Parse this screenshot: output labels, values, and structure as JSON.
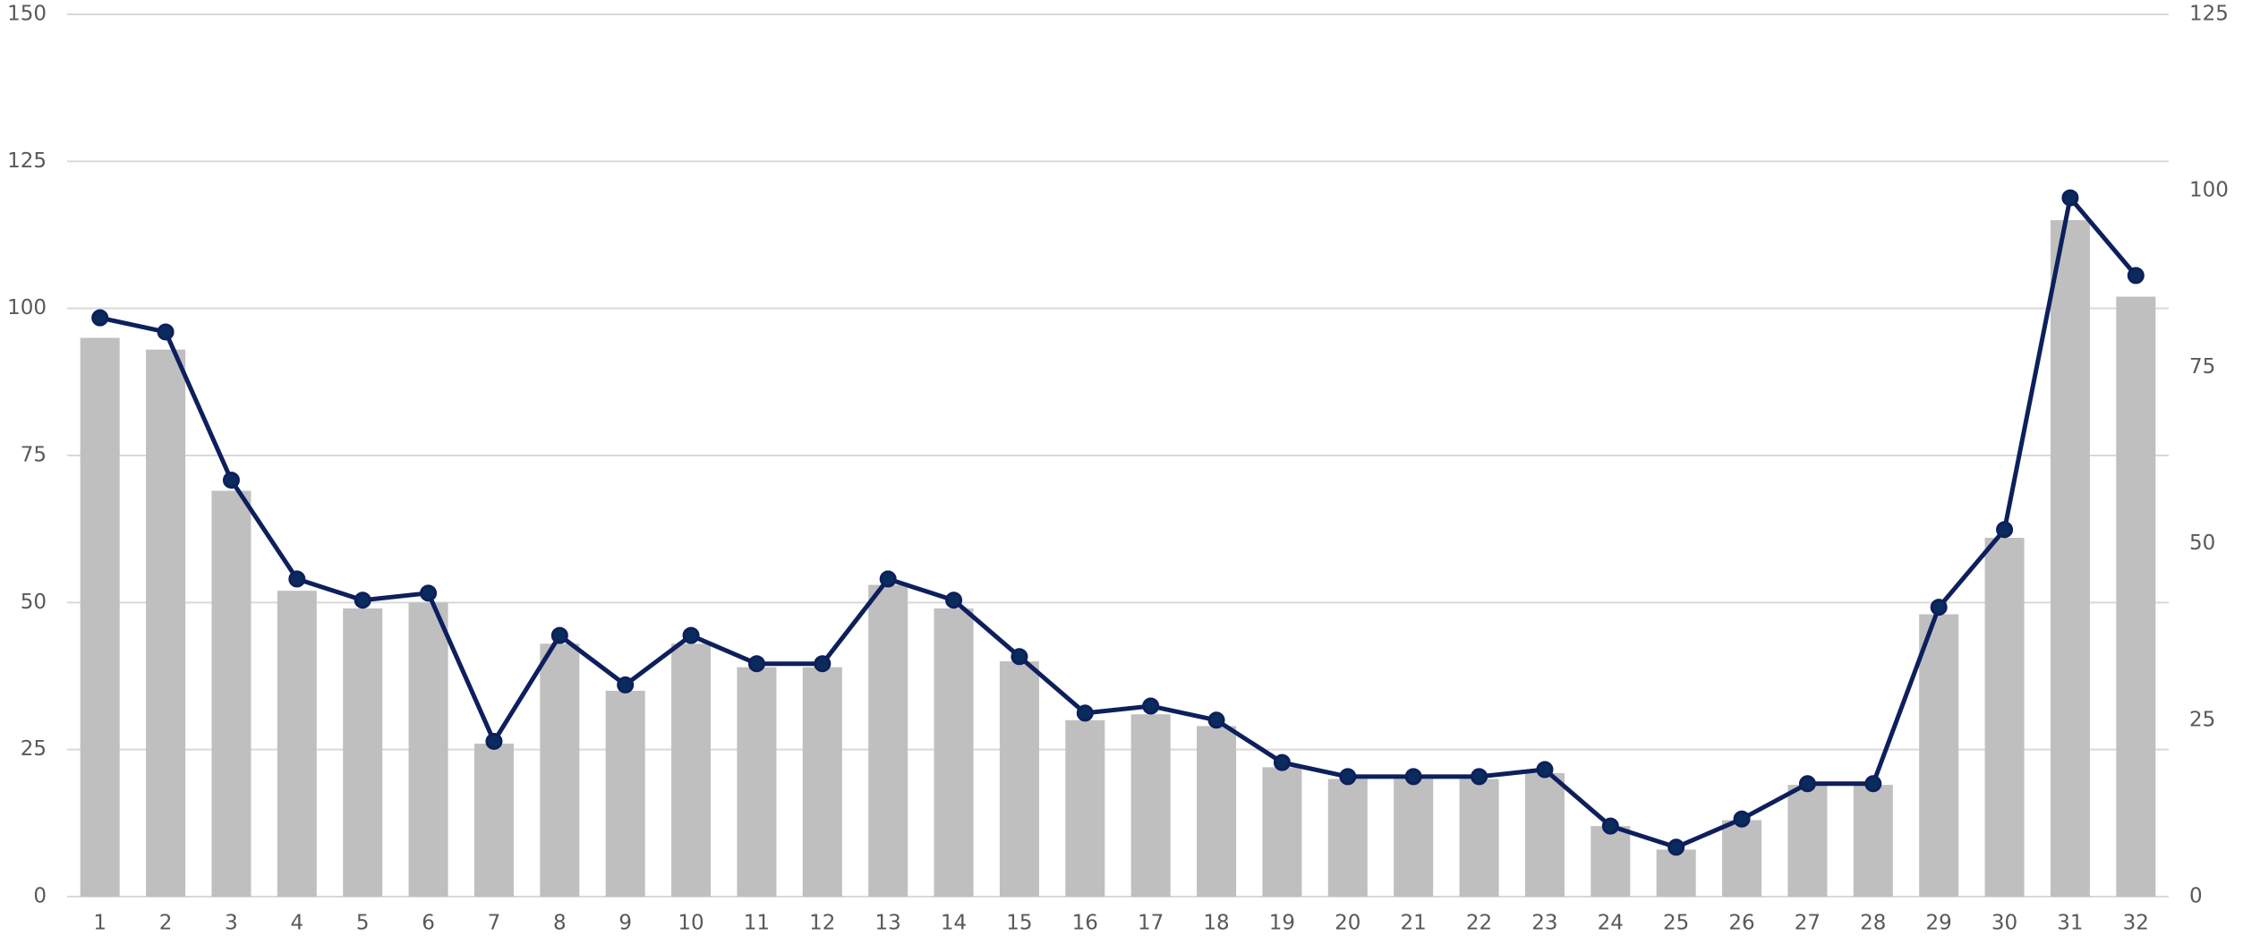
{
  "chart_data": {
    "type": "bar-line",
    "categories": [
      "1",
      "2",
      "3",
      "4",
      "5",
      "6",
      "7",
      "8",
      "9",
      "10",
      "11",
      "12",
      "13",
      "14",
      "15",
      "16",
      "17",
      "18",
      "19",
      "20",
      "21",
      "22",
      "23",
      "24",
      "25",
      "26",
      "27",
      "28",
      "29",
      "30",
      "31",
      "32"
    ],
    "series": [
      {
        "type": "bar",
        "color": "#bfbfbf",
        "values": [
          95,
          93,
          69,
          52,
          49,
          50,
          26,
          43,
          35,
          43,
          39,
          39,
          53,
          49,
          40,
          30,
          31,
          29,
          22,
          20,
          20,
          20,
          21,
          12,
          8,
          13,
          19,
          19,
          48,
          61,
          115,
          102
        ]
      },
      {
        "type": "line",
        "axis": "y2",
        "color": "#0d1f5c",
        "values": [
          82,
          80,
          59,
          45,
          42,
          43,
          22,
          37,
          30,
          37,
          33,
          33,
          45,
          42,
          34,
          26,
          27,
          25,
          19,
          17,
          17,
          17,
          18,
          10,
          7,
          11,
          16,
          16,
          41,
          52,
          99,
          88
        ]
      }
    ],
    "ylim": [
      0,
      150
    ],
    "yticks": [
      0,
      25,
      50,
      75,
      100,
      125,
      150
    ],
    "y2lim": [
      0,
      125
    ],
    "y2ticks": [
      0,
      25,
      50,
      75,
      100,
      125
    ],
    "grid": true
  }
}
